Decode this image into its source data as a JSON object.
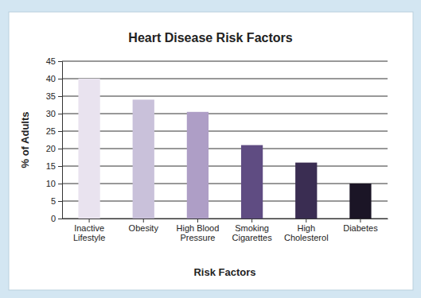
{
  "chart_data": {
    "type": "bar",
    "title": "Heart Disease Risk Factors",
    "x_label": "Risk Factors",
    "y_label": "% of Adults",
    "categories": [
      "Inactive Lifestyle",
      "Obesity",
      "High Blood Pressure",
      "Smoking Cigarettes",
      "High Cholesterol",
      "Diabetes"
    ],
    "values": [
      40,
      34,
      30.5,
      21,
      16,
      10
    ],
    "colors": [
      "#e9e3ef",
      "#c9c1da",
      "#ae9ec6",
      "#5f4c82",
      "#3a2d52",
      "#1b1526"
    ],
    "ylim": [
      0,
      45
    ],
    "yticks": [
      0,
      5,
      10,
      15,
      20,
      25,
      30,
      35,
      40,
      45
    ],
    "grid": true
  }
}
